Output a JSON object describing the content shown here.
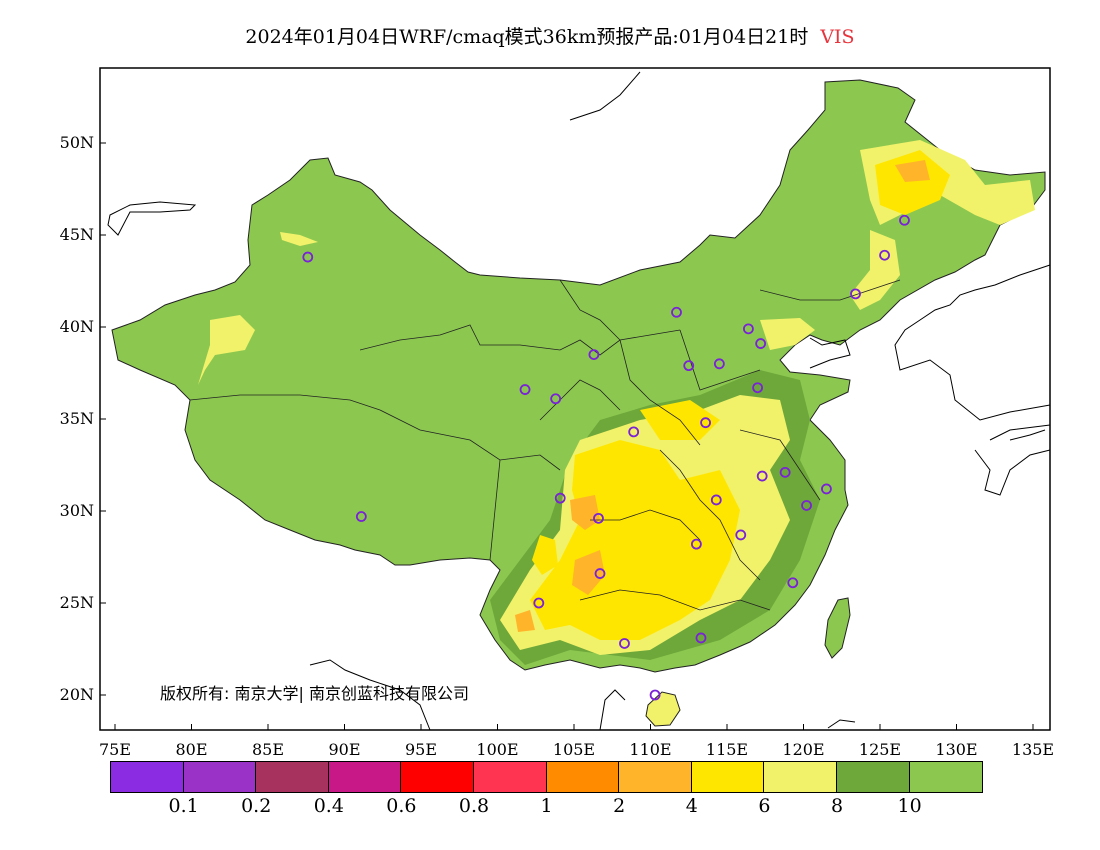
{
  "title": {
    "text": "2024年01月04日WRF/cmaq模式36km预报产品:01月04日21时",
    "variable": "VIS",
    "variable_color": "#e8343c"
  },
  "copyright": "版权所有: 南京大学| 南京创蓝科技有限公司",
  "axes": {
    "lat_labels": [
      "50N",
      "45N",
      "40N",
      "35N",
      "30N",
      "25N",
      "20N"
    ],
    "lon_labels": [
      "75E",
      "80E",
      "85E",
      "90E",
      "95E",
      "100E",
      "105E",
      "110E",
      "115E",
      "120E",
      "125E",
      "130E",
      "135E"
    ],
    "lon_range": [
      73,
      135
    ],
    "lat_range": [
      18,
      54
    ]
  },
  "colorbar": {
    "colors": [
      "#8b2be2",
      "#9b32c8",
      "#a8325e",
      "#c81888",
      "#ff0000",
      "#ff3450",
      "#ff8c00",
      "#ffb42a",
      "#ffe600",
      "#f2f26a",
      "#6ea83a",
      "#8cc850"
    ],
    "labels": [
      "0.1",
      "0.2",
      "0.4",
      "0.6",
      "0.8",
      "1",
      "2",
      "4",
      "6",
      "8",
      "10"
    ]
  },
  "stations": [
    {
      "lon": 87.6,
      "lat": 43.8
    },
    {
      "lon": 91.1,
      "lat": 29.7
    },
    {
      "lon": 101.8,
      "lat": 36.6
    },
    {
      "lon": 103.8,
      "lat": 36.1
    },
    {
      "lon": 106.3,
      "lat": 38.5
    },
    {
      "lon": 111.7,
      "lat": 40.8
    },
    {
      "lon": 112.5,
      "lat": 37.9
    },
    {
      "lon": 114.5,
      "lat": 38.0
    },
    {
      "lon": 116.4,
      "lat": 39.9
    },
    {
      "lon": 117.2,
      "lat": 39.1
    },
    {
      "lon": 117.0,
      "lat": 36.7
    },
    {
      "lon": 113.6,
      "lat": 34.8
    },
    {
      "lon": 108.9,
      "lat": 34.3
    },
    {
      "lon": 117.3,
      "lat": 31.9
    },
    {
      "lon": 118.8,
      "lat": 32.1
    },
    {
      "lon": 121.5,
      "lat": 31.2
    },
    {
      "lon": 120.2,
      "lat": 30.3
    },
    {
      "lon": 114.3,
      "lat": 30.6
    },
    {
      "lon": 115.9,
      "lat": 28.7
    },
    {
      "lon": 113.0,
      "lat": 28.2
    },
    {
      "lon": 106.6,
      "lat": 29.6
    },
    {
      "lon": 104.1,
      "lat": 30.7
    },
    {
      "lon": 106.7,
      "lat": 26.6
    },
    {
      "lon": 102.7,
      "lat": 25.0
    },
    {
      "lon": 108.3,
      "lat": 22.8
    },
    {
      "lon": 113.3,
      "lat": 23.1
    },
    {
      "lon": 119.3,
      "lat": 26.1
    },
    {
      "lon": 110.3,
      "lat": 20.0
    },
    {
      "lon": 123.4,
      "lat": 41.8
    },
    {
      "lon": 125.3,
      "lat": 43.9
    },
    {
      "lon": 126.6,
      "lat": 45.8
    }
  ]
}
